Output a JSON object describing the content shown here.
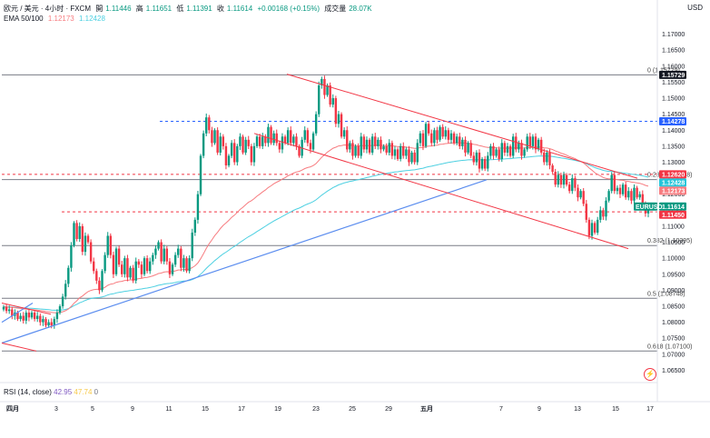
{
  "header": {
    "symbol": "欧元 / 美元 · 4小时 · FXCM",
    "open_label": "開",
    "open": "1.11446",
    "high_label": "高",
    "high": "1.11651",
    "low_label": "低",
    "low": "1.11391",
    "close_label": "收",
    "close": "1.11614",
    "change": "+0.00168 (+0.15%)",
    "volume_label": "成交量",
    "volume": "28.07K",
    "ema_label": "EMA 50/100",
    "ema50": "1.12173",
    "ema100": "1.12428"
  },
  "rsi": {
    "label": "RSI (14, close)",
    "v1": "42.95",
    "v2": "47.74",
    "v3": "0"
  },
  "currency": "USD",
  "colors": {
    "up": "#089981",
    "down": "#f23645",
    "ema50": "#f77c80",
    "ema100": "#4dd0e1",
    "trend": "#5b8def",
    "channel": "#f23645",
    "level": "#131722",
    "dash_blue": "#2962ff",
    "dash_red": "#f23645"
  },
  "chart_data": {
    "type": "candlestick",
    "y_ticks": [
      "1.17000",
      "1.16500",
      "1.16000",
      "1.15500",
      "1.15000",
      "1.14500",
      "1.14000",
      "1.13500",
      "1.13000",
      "1.12500",
      "1.12000",
      "1.11500",
      "1.11000",
      "1.10500",
      "1.10000",
      "1.09500",
      "1.09000",
      "1.08500",
      "1.08000",
      "1.07500",
      "1.07000",
      "1.06500"
    ],
    "ylim": [
      1.062,
      1.175
    ],
    "x_ticks": [
      "四月",
      "3",
      "5",
      "9",
      "11",
      "15",
      "17",
      "19",
      "23",
      "25",
      "29",
      "五月",
      "7",
      "9",
      "13",
      "15",
      "17"
    ],
    "price_tags": [
      {
        "text": "1.15729",
        "value": 1.15729,
        "color": "#131722"
      },
      {
        "text": "1.14278",
        "value": 1.14278,
        "color": "#2962ff"
      },
      {
        "text": "1.12620",
        "value": 1.1262,
        "color": "#f23645"
      },
      {
        "text": "1.12428",
        "value": 1.12428,
        "color": "#26c6da"
      },
      {
        "text": "1.12173",
        "value": 1.12173,
        "color": "#f77c80"
      },
      {
        "text": "1.11614",
        "value": 1.11614,
        "color": "#089981"
      },
      {
        "text": "1.11450",
        "value": 1.1145,
        "color": "#f23645"
      }
    ],
    "symbol_tag": "EURUSD",
    "fib_levels": [
      {
        "label": "0 (1.15729)",
        "value": 1.15729
      },
      {
        "label": "0.236 (1.12458)",
        "value": 1.12458
      },
      {
        "label": "0.382 (1.10395)",
        "value": 1.10395
      },
      {
        "label": "0.5 (1.08748)",
        "value": 1.08748
      },
      {
        "label": "0.618 (1.07100)",
        "value": 1.071
      }
    ],
    "dashed_levels": [
      {
        "value": 1.14278,
        "color": "#2962ff"
      },
      {
        "value": 1.1262,
        "color": "#f23645"
      },
      {
        "value": 1.1145,
        "color": "#f23645"
      }
    ],
    "closes": [
      1.0848,
      1.0835,
      1.084,
      1.082,
      1.083,
      1.081,
      1.082,
      1.0805,
      1.083,
      1.0815,
      1.083,
      1.081,
      1.082,
      1.08,
      1.081,
      1.079,
      1.08,
      1.079,
      1.081,
      1.083,
      1.085,
      1.088,
      1.092,
      1.097,
      1.104,
      1.111,
      1.106,
      1.11,
      1.102,
      1.107,
      1.105,
      1.099,
      1.096,
      1.093,
      1.09,
      1.096,
      1.101,
      1.107,
      1.101,
      1.095,
      1.103,
      1.098,
      1.095,
      1.1,
      1.094,
      1.097,
      1.093,
      1.099,
      1.098,
      1.095,
      1.1,
      1.096,
      1.099,
      1.101,
      1.103,
      1.105,
      1.099,
      1.103,
      1.099,
      1.095,
      1.098,
      1.101,
      1.103,
      1.097,
      1.1,
      1.096,
      1.1,
      1.108,
      1.112,
      1.12,
      1.132,
      1.139,
      1.144,
      1.14,
      1.136,
      1.14,
      1.133,
      1.138,
      1.135,
      1.129,
      1.132,
      1.136,
      1.13,
      1.135,
      1.138,
      1.133,
      1.137,
      1.135,
      1.13,
      1.135,
      1.138,
      1.135,
      1.138,
      1.136,
      1.141,
      1.136,
      1.139,
      1.136,
      1.134,
      1.138,
      1.136,
      1.14,
      1.136,
      1.138,
      1.135,
      1.132,
      1.137,
      1.14,
      1.136,
      1.134,
      1.139,
      1.145,
      1.154,
      1.156,
      1.151,
      1.154,
      1.148,
      1.15,
      1.142,
      1.145,
      1.138,
      1.14,
      1.134,
      1.136,
      1.132,
      1.135,
      1.132,
      1.138,
      1.134,
      1.137,
      1.133,
      1.138,
      1.135,
      1.137,
      1.134,
      1.135,
      1.133,
      1.136,
      1.132,
      1.134,
      1.131,
      1.135,
      1.132,
      1.134,
      1.13,
      1.133,
      1.13,
      1.136,
      1.139,
      1.135,
      1.142,
      1.139,
      1.136,
      1.14,
      1.137,
      1.141,
      1.138,
      1.14,
      1.137,
      1.139,
      1.136,
      1.138,
      1.135,
      1.137,
      1.133,
      1.136,
      1.132,
      1.13,
      1.133,
      1.128,
      1.131,
      1.128,
      1.132,
      1.135,
      1.132,
      1.134,
      1.131,
      1.136,
      1.133,
      1.135,
      1.132,
      1.138,
      1.134,
      1.136,
      1.132,
      1.134,
      1.138,
      1.135,
      1.138,
      1.134,
      1.137,
      1.133,
      1.13,
      1.133,
      1.129,
      1.127,
      1.123,
      1.126,
      1.123,
      1.126,
      1.123,
      1.121,
      1.125,
      1.122,
      1.119,
      1.121,
      1.117,
      1.112,
      1.107,
      1.111,
      1.108,
      1.112,
      1.115,
      1.113,
      1.118,
      1.121,
      1.126,
      1.121,
      1.122,
      1.12,
      1.123,
      1.119,
      1.121,
      1.118,
      1.122,
      1.119,
      1.12,
      1.117,
      1.114,
      1.116
    ],
    "title": "",
    "xlabel": "",
    "ylabel": ""
  }
}
